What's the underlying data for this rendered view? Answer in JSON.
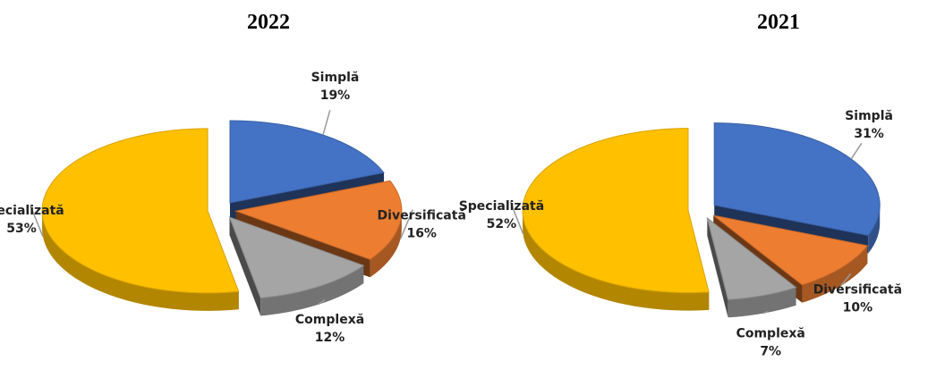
{
  "chart_data": [
    {
      "type": "pie",
      "title": "2022",
      "categories": [
        "Simplă",
        "Diversificată",
        "Complexă",
        "Specializată"
      ],
      "values": [
        19,
        16,
        12,
        53
      ],
      "value_labels": [
        "19%",
        "16%",
        "12%",
        "53%"
      ],
      "colors": [
        "#4472c4",
        "#ed7d31",
        "#a5a5a5",
        "#ffc000"
      ]
    },
    {
      "type": "pie",
      "title": "2021",
      "categories": [
        "Simplă",
        "Diversificată",
        "Complexă",
        "Specializată"
      ],
      "values": [
        31,
        10,
        7,
        52
      ],
      "value_labels": [
        "31%",
        "10%",
        "7%",
        "52%"
      ],
      "colors": [
        "#4472c4",
        "#ed7d31",
        "#a5a5a5",
        "#ffc000"
      ]
    }
  ]
}
